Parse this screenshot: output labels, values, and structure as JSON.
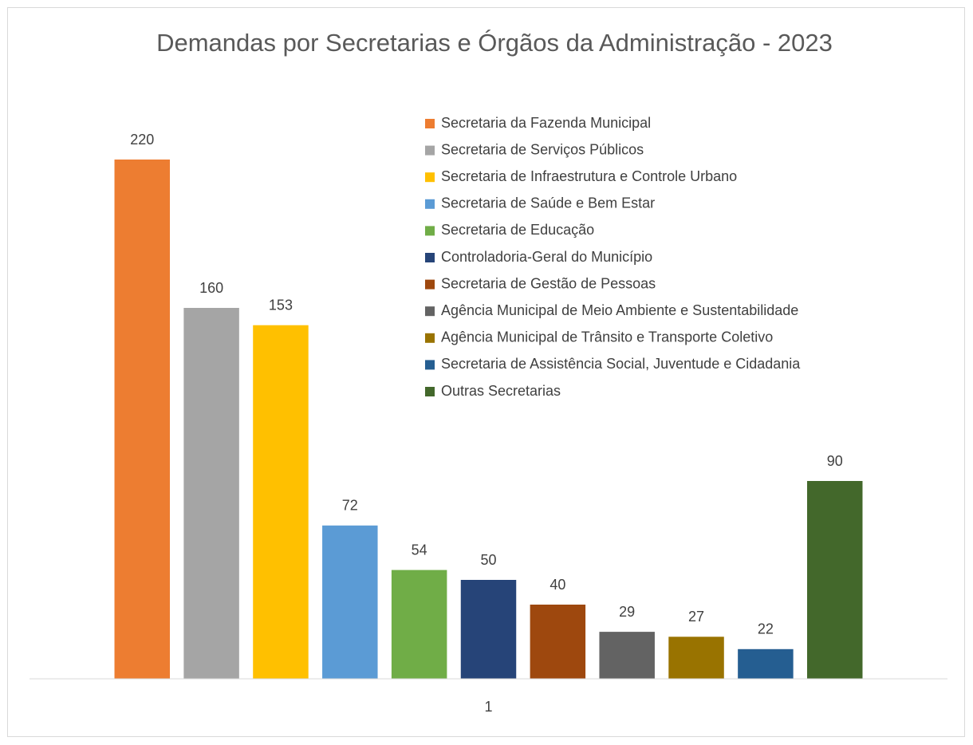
{
  "chart_data": {
    "type": "bar",
    "title": "Demandas por Secretarias e Órgãos da Administração - 2023",
    "categories": [
      "1"
    ],
    "ylim": [
      10,
      240
    ],
    "legend": "upper right",
    "series": [
      {
        "name": "Secretaria da Fazenda Municipal",
        "color": "#ed7d31",
        "values": [
          220
        ]
      },
      {
        "name": "Secretaria de Serviços Públicos",
        "color": "#a5a5a5",
        "values": [
          160
        ]
      },
      {
        "name": "Secretaria de Infraestrutura e Controle Urbano",
        "color": "#ffc000",
        "values": [
          153
        ]
      },
      {
        "name": "Secretaria de Saúde e Bem Estar",
        "color": "#5b9bd5",
        "values": [
          72
        ]
      },
      {
        "name": "Secretaria de Educação",
        "color": "#70ad47",
        "values": [
          54
        ]
      },
      {
        "name": "Controladoria-Geral do Município",
        "color": "#264478",
        "values": [
          50
        ]
      },
      {
        "name": "Secretaria de Gestão de Pessoas",
        "color": "#9e480e",
        "values": [
          40
        ]
      },
      {
        "name": "Agência Municipal de Meio Ambiente e Sustentabilidade",
        "color": "#636363",
        "values": [
          29
        ]
      },
      {
        "name": "Agência Municipal de Trânsito e Transporte Coletivo",
        "color": "#997300",
        "values": [
          27
        ]
      },
      {
        "name": "Secretaria de Assistência Social, Juventude e Cidadania",
        "color": "#255e91",
        "values": [
          22
        ]
      },
      {
        "name": "Outras Secretarias",
        "color": "#43682b",
        "values": [
          90
        ]
      }
    ]
  }
}
